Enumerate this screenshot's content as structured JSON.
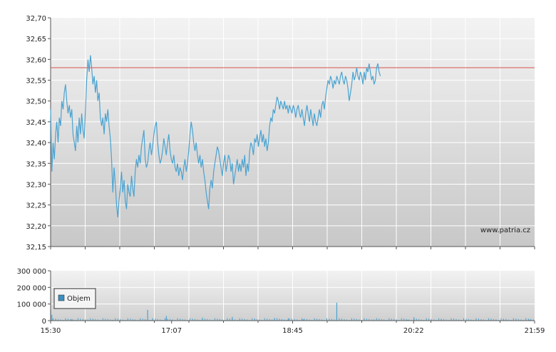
{
  "chart_data": [
    {
      "type": "line",
      "panel": "price",
      "ylim": [
        32.15,
        32.7
      ],
      "y_ticks": [
        "32,15",
        "32,20",
        "32,25",
        "32,30",
        "32,35",
        "32,40",
        "32,45",
        "32,50",
        "32,55",
        "32,60",
        "32,65",
        "32,70"
      ],
      "reference_line": {
        "value": 32.58,
        "color": "#d9534f"
      },
      "series_color": "#4aa3d1",
      "grid": true,
      "watermark": "www.patria.cz",
      "x_minutes_range": [
        930,
        1319
      ],
      "points": [
        [
          930,
          32.48
        ],
        [
          931,
          32.33
        ],
        [
          932,
          32.4
        ],
        [
          933,
          32.36
        ],
        [
          934,
          32.42
        ],
        [
          935,
          32.45
        ],
        [
          936,
          32.4
        ],
        [
          937,
          32.46
        ],
        [
          938,
          32.44
        ],
        [
          939,
          32.5
        ],
        [
          940,
          32.48
        ],
        [
          941,
          32.52
        ],
        [
          942,
          32.54
        ],
        [
          943,
          32.5
        ],
        [
          944,
          32.47
        ],
        [
          945,
          32.49
        ],
        [
          946,
          32.46
        ],
        [
          947,
          32.48
        ],
        [
          948,
          32.42
        ],
        [
          949,
          32.4
        ],
        [
          950,
          32.38
        ],
        [
          951,
          32.44
        ],
        [
          952,
          32.4
        ],
        [
          953,
          32.46
        ],
        [
          954,
          32.42
        ],
        [
          955,
          32.47
        ],
        [
          956,
          32.43
        ],
        [
          957,
          32.41
        ],
        [
          958,
          32.48
        ],
        [
          959,
          32.55
        ],
        [
          960,
          32.6
        ],
        [
          961,
          32.57
        ],
        [
          962,
          32.61
        ],
        [
          963,
          32.58
        ],
        [
          964,
          32.54
        ],
        [
          965,
          32.56
        ],
        [
          966,
          32.52
        ],
        [
          967,
          32.55
        ],
        [
          968,
          32.5
        ],
        [
          969,
          32.52
        ],
        [
          970,
          32.46
        ],
        [
          971,
          32.44
        ],
        [
          972,
          32.46
        ],
        [
          973,
          32.42
        ],
        [
          974,
          32.47
        ],
        [
          975,
          32.45
        ],
        [
          976,
          32.48
        ],
        [
          977,
          32.44
        ],
        [
          978,
          32.41
        ],
        [
          979,
          32.36
        ],
        [
          980,
          32.28
        ],
        [
          981,
          32.34
        ],
        [
          982,
          32.3
        ],
        [
          983,
          32.25
        ],
        [
          984,
          32.22
        ],
        [
          985,
          32.26
        ],
        [
          986,
          32.29
        ],
        [
          987,
          32.33
        ],
        [
          988,
          32.28
        ],
        [
          989,
          32.31
        ],
        [
          990,
          32.26
        ],
        [
          991,
          32.24
        ],
        [
          992,
          32.3
        ],
        [
          993,
          32.28
        ],
        [
          994,
          32.27
        ],
        [
          995,
          32.32
        ],
        [
          996,
          32.29
        ],
        [
          997,
          32.27
        ],
        [
          998,
          32.33
        ],
        [
          999,
          32.36
        ],
        [
          1000,
          32.34
        ],
        [
          1001,
          32.37
        ],
        [
          1002,
          32.35
        ],
        [
          1003,
          32.39
        ],
        [
          1004,
          32.41
        ],
        [
          1005,
          32.43
        ],
        [
          1006,
          32.36
        ],
        [
          1007,
          32.34
        ],
        [
          1008,
          32.35
        ],
        [
          1009,
          32.38
        ],
        [
          1010,
          32.4
        ],
        [
          1011,
          32.37
        ],
        [
          1012,
          32.39
        ],
        [
          1013,
          32.42
        ],
        [
          1014,
          32.44
        ],
        [
          1015,
          32.45
        ],
        [
          1016,
          32.4
        ],
        [
          1017,
          32.37
        ],
        [
          1018,
          32.35
        ],
        [
          1019,
          32.36
        ],
        [
          1020,
          32.38
        ],
        [
          1021,
          32.41
        ],
        [
          1022,
          32.39
        ],
        [
          1023,
          32.37
        ],
        [
          1024,
          32.4
        ],
        [
          1025,
          32.42
        ],
        [
          1026,
          32.38
        ],
        [
          1027,
          32.36
        ],
        [
          1028,
          32.35
        ],
        [
          1029,
          32.37
        ],
        [
          1030,
          32.34
        ],
        [
          1031,
          32.33
        ],
        [
          1032,
          32.35
        ],
        [
          1033,
          32.32
        ],
        [
          1034,
          32.34
        ],
        [
          1035,
          32.33
        ],
        [
          1036,
          32.31
        ],
        [
          1037,
          32.34
        ],
        [
          1038,
          32.36
        ],
        [
          1039,
          32.33
        ],
        [
          1040,
          32.35
        ],
        [
          1041,
          32.38
        ],
        [
          1042,
          32.42
        ],
        [
          1043,
          32.45
        ],
        [
          1044,
          32.43
        ],
        [
          1045,
          32.4
        ],
        [
          1046,
          32.38
        ],
        [
          1047,
          32.4
        ],
        [
          1048,
          32.37
        ],
        [
          1049,
          32.35
        ],
        [
          1050,
          32.37
        ],
        [
          1051,
          32.34
        ],
        [
          1052,
          32.36
        ],
        [
          1053,
          32.33
        ],
        [
          1054,
          32.31
        ],
        [
          1055,
          32.28
        ],
        [
          1056,
          32.26
        ],
        [
          1057,
          32.24
        ],
        [
          1058,
          32.29
        ],
        [
          1059,
          32.31
        ],
        [
          1060,
          32.29
        ],
        [
          1061,
          32.33
        ],
        [
          1062,
          32.35
        ],
        [
          1063,
          32.37
        ],
        [
          1064,
          32.39
        ],
        [
          1065,
          32.38
        ],
        [
          1066,
          32.36
        ],
        [
          1067,
          32.34
        ],
        [
          1068,
          32.32
        ],
        [
          1069,
          32.35
        ],
        [
          1070,
          32.37
        ],
        [
          1071,
          32.33
        ],
        [
          1072,
          32.35
        ],
        [
          1073,
          32.37
        ],
        [
          1074,
          32.36
        ],
        [
          1075,
          32.33
        ],
        [
          1076,
          32.35
        ],
        [
          1077,
          32.3
        ],
        [
          1078,
          32.32
        ],
        [
          1079,
          32.34
        ],
        [
          1080,
          32.36
        ],
        [
          1081,
          32.33
        ],
        [
          1082,
          32.35
        ],
        [
          1083,
          32.33
        ],
        [
          1084,
          32.36
        ],
        [
          1085,
          32.34
        ],
        [
          1086,
          32.37
        ],
        [
          1087,
          32.32
        ],
        [
          1088,
          32.35
        ],
        [
          1089,
          32.33
        ],
        [
          1090,
          32.38
        ],
        [
          1091,
          32.4
        ],
        [
          1092,
          32.39
        ],
        [
          1093,
          32.37
        ],
        [
          1094,
          32.41
        ],
        [
          1095,
          32.4
        ],
        [
          1096,
          32.42
        ],
        [
          1097,
          32.39
        ],
        [
          1098,
          32.41
        ],
        [
          1099,
          32.43
        ],
        [
          1100,
          32.4
        ],
        [
          1101,
          32.42
        ],
        [
          1102,
          32.39
        ],
        [
          1103,
          32.41
        ],
        [
          1104,
          32.38
        ],
        [
          1105,
          32.4
        ],
        [
          1106,
          32.44
        ],
        [
          1107,
          32.46
        ],
        [
          1108,
          32.45
        ],
        [
          1109,
          32.48
        ],
        [
          1110,
          32.47
        ],
        [
          1111,
          32.49
        ],
        [
          1112,
          32.51
        ],
        [
          1113,
          32.5
        ],
        [
          1114,
          32.48
        ],
        [
          1115,
          32.5
        ],
        [
          1116,
          32.49
        ],
        [
          1117,
          32.48
        ],
        [
          1118,
          32.5
        ],
        [
          1119,
          32.48
        ],
        [
          1120,
          32.49
        ],
        [
          1121,
          32.47
        ],
        [
          1122,
          32.49
        ],
        [
          1123,
          32.48
        ],
        [
          1124,
          32.47
        ],
        [
          1125,
          32.49
        ],
        [
          1126,
          32.48
        ],
        [
          1127,
          32.46
        ],
        [
          1128,
          32.48
        ],
        [
          1129,
          32.49
        ],
        [
          1130,
          32.47
        ],
        [
          1131,
          32.46
        ],
        [
          1132,
          32.48
        ],
        [
          1133,
          32.46
        ],
        [
          1134,
          32.44
        ],
        [
          1135,
          32.47
        ],
        [
          1136,
          32.49
        ],
        [
          1137,
          32.47
        ],
        [
          1138,
          32.45
        ],
        [
          1139,
          32.48
        ],
        [
          1140,
          32.46
        ],
        [
          1141,
          32.44
        ],
        [
          1142,
          32.47
        ],
        [
          1143,
          32.45
        ],
        [
          1144,
          32.44
        ],
        [
          1145,
          32.46
        ],
        [
          1146,
          32.48
        ],
        [
          1147,
          32.46
        ],
        [
          1148,
          32.49
        ],
        [
          1149,
          32.5
        ],
        [
          1150,
          32.48
        ],
        [
          1151,
          32.51
        ],
        [
          1152,
          32.53
        ],
        [
          1153,
          32.55
        ],
        [
          1154,
          32.54
        ],
        [
          1155,
          32.56
        ],
        [
          1156,
          32.55
        ],
        [
          1157,
          32.53
        ],
        [
          1158,
          32.55
        ],
        [
          1159,
          32.54
        ],
        [
          1160,
          32.56
        ],
        [
          1161,
          32.55
        ],
        [
          1162,
          32.54
        ],
        [
          1163,
          32.56
        ],
        [
          1164,
          32.57
        ],
        [
          1165,
          32.55
        ],
        [
          1166,
          32.54
        ],
        [
          1167,
          32.56
        ],
        [
          1168,
          32.55
        ],
        [
          1169,
          32.53
        ],
        [
          1170,
          32.5
        ],
        [
          1171,
          32.52
        ],
        [
          1172,
          32.54
        ],
        [
          1173,
          32.57
        ],
        [
          1174,
          32.55
        ],
        [
          1175,
          32.56
        ],
        [
          1176,
          32.58
        ],
        [
          1177,
          32.56
        ],
        [
          1178,
          32.55
        ],
        [
          1179,
          32.57
        ],
        [
          1180,
          32.56
        ],
        [
          1181,
          32.54
        ],
        [
          1182,
          32.57
        ],
        [
          1183,
          32.55
        ],
        [
          1184,
          32.58
        ],
        [
          1185,
          32.57
        ],
        [
          1186,
          32.59
        ],
        [
          1187,
          32.57
        ],
        [
          1188,
          32.55
        ],
        [
          1189,
          32.56
        ],
        [
          1190,
          32.54
        ],
        [
          1191,
          32.55
        ],
        [
          1192,
          32.58
        ],
        [
          1193,
          32.59
        ],
        [
          1194,
          32.57
        ],
        [
          1195,
          32.56
        ]
      ]
    },
    {
      "type": "bar",
      "panel": "volume",
      "ylim": [
        0,
        300000
      ],
      "y_ticks": [
        "0",
        "100 000",
        "200 000",
        "300 000"
      ],
      "x_ticks": [
        "15:30",
        "17:07",
        "18:45",
        "20:22",
        "21:59"
      ],
      "legend": [
        {
          "name": "Objem",
          "color": "#3a8fc2"
        }
      ],
      "legend_position": "top-left",
      "series_color": "#4aa3d1",
      "spikes": [
        [
          930,
          60000
        ],
        [
          931,
          35000
        ],
        [
          947,
          8000
        ],
        [
          960,
          6000
        ],
        [
          980,
          5000
        ],
        [
          1012,
          12000
        ],
        [
          1023,
          28000
        ],
        [
          1052,
          18000
        ],
        [
          1076,
          22000
        ],
        [
          1094,
          10000
        ],
        [
          1110,
          16000
        ],
        [
          1121,
          13000
        ],
        [
          1133,
          8000
        ],
        [
          1158,
          6000
        ],
        [
          1190,
          7000
        ],
        [
          1217,
          5000
        ],
        [
          1244,
          6000
        ],
        [
          1270,
          4000
        ],
        [
          1296,
          5000
        ],
        [
          1315,
          6000
        ],
        [
          1008,
          65000
        ],
        [
          1160,
          108000
        ],
        [
          1222,
          20000
        ]
      ]
    }
  ]
}
